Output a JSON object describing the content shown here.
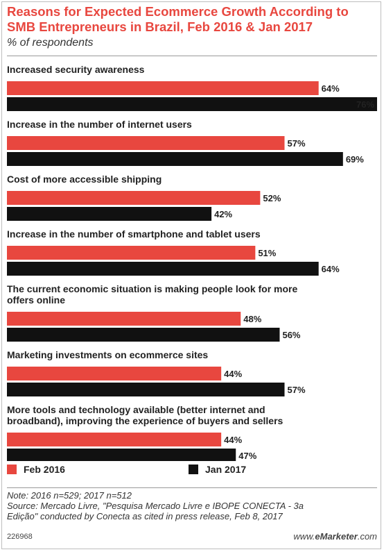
{
  "header": {
    "title": "Reasons for Expected Ecommerce Growth According to SMB Entrepreneurs in Brazil, Feb 2016 & Jan 2017",
    "subtitle": "% of respondents"
  },
  "colors": {
    "series_1": "#e8473f",
    "series_2": "#111111",
    "title": "#e8473f"
  },
  "chart_data": {
    "type": "bar",
    "orientation": "horizontal",
    "categories": [
      [
        "Increased security awareness"
      ],
      [
        "Increase in the number of internet users"
      ],
      [
        "Cost of more accessible shipping"
      ],
      [
        "Increase in the number of smartphone and tablet users"
      ],
      [
        "The current economic situation is making people look for more",
        "offers online"
      ],
      [
        "Marketing investments on ecommerce sites"
      ],
      [
        "More tools and technology available (better internet and",
        "broadband), improving the experience of buyers and sellers"
      ]
    ],
    "series": [
      {
        "name": "Feb 2016",
        "values": [
          64,
          57,
          52,
          51,
          48,
          44,
          44
        ]
      },
      {
        "name": "Jan 2017",
        "values": [
          76,
          69,
          42,
          64,
          56,
          57,
          47
        ]
      }
    ],
    "value_suffix": "%",
    "xlim": [
      0,
      76
    ],
    "grid": false,
    "legend_position": "bottom-left"
  },
  "legend": {
    "items": [
      "Feb 2016",
      "Jan 2017"
    ]
  },
  "notes": {
    "line1": "Note: 2016 n=529; 2017 n=512",
    "line2": "Source: Mercado Livre, \"Pesquisa Mercado Livre e IBOPE CONECTA - 3a",
    "line3": "Edição\" conducted by Conecta as cited in press release, Feb 8, 2017"
  },
  "footer": {
    "chart_id": "226968",
    "brand_prefix": "www.",
    "brand_name": "eMarketer",
    "brand_suffix": ".com"
  }
}
